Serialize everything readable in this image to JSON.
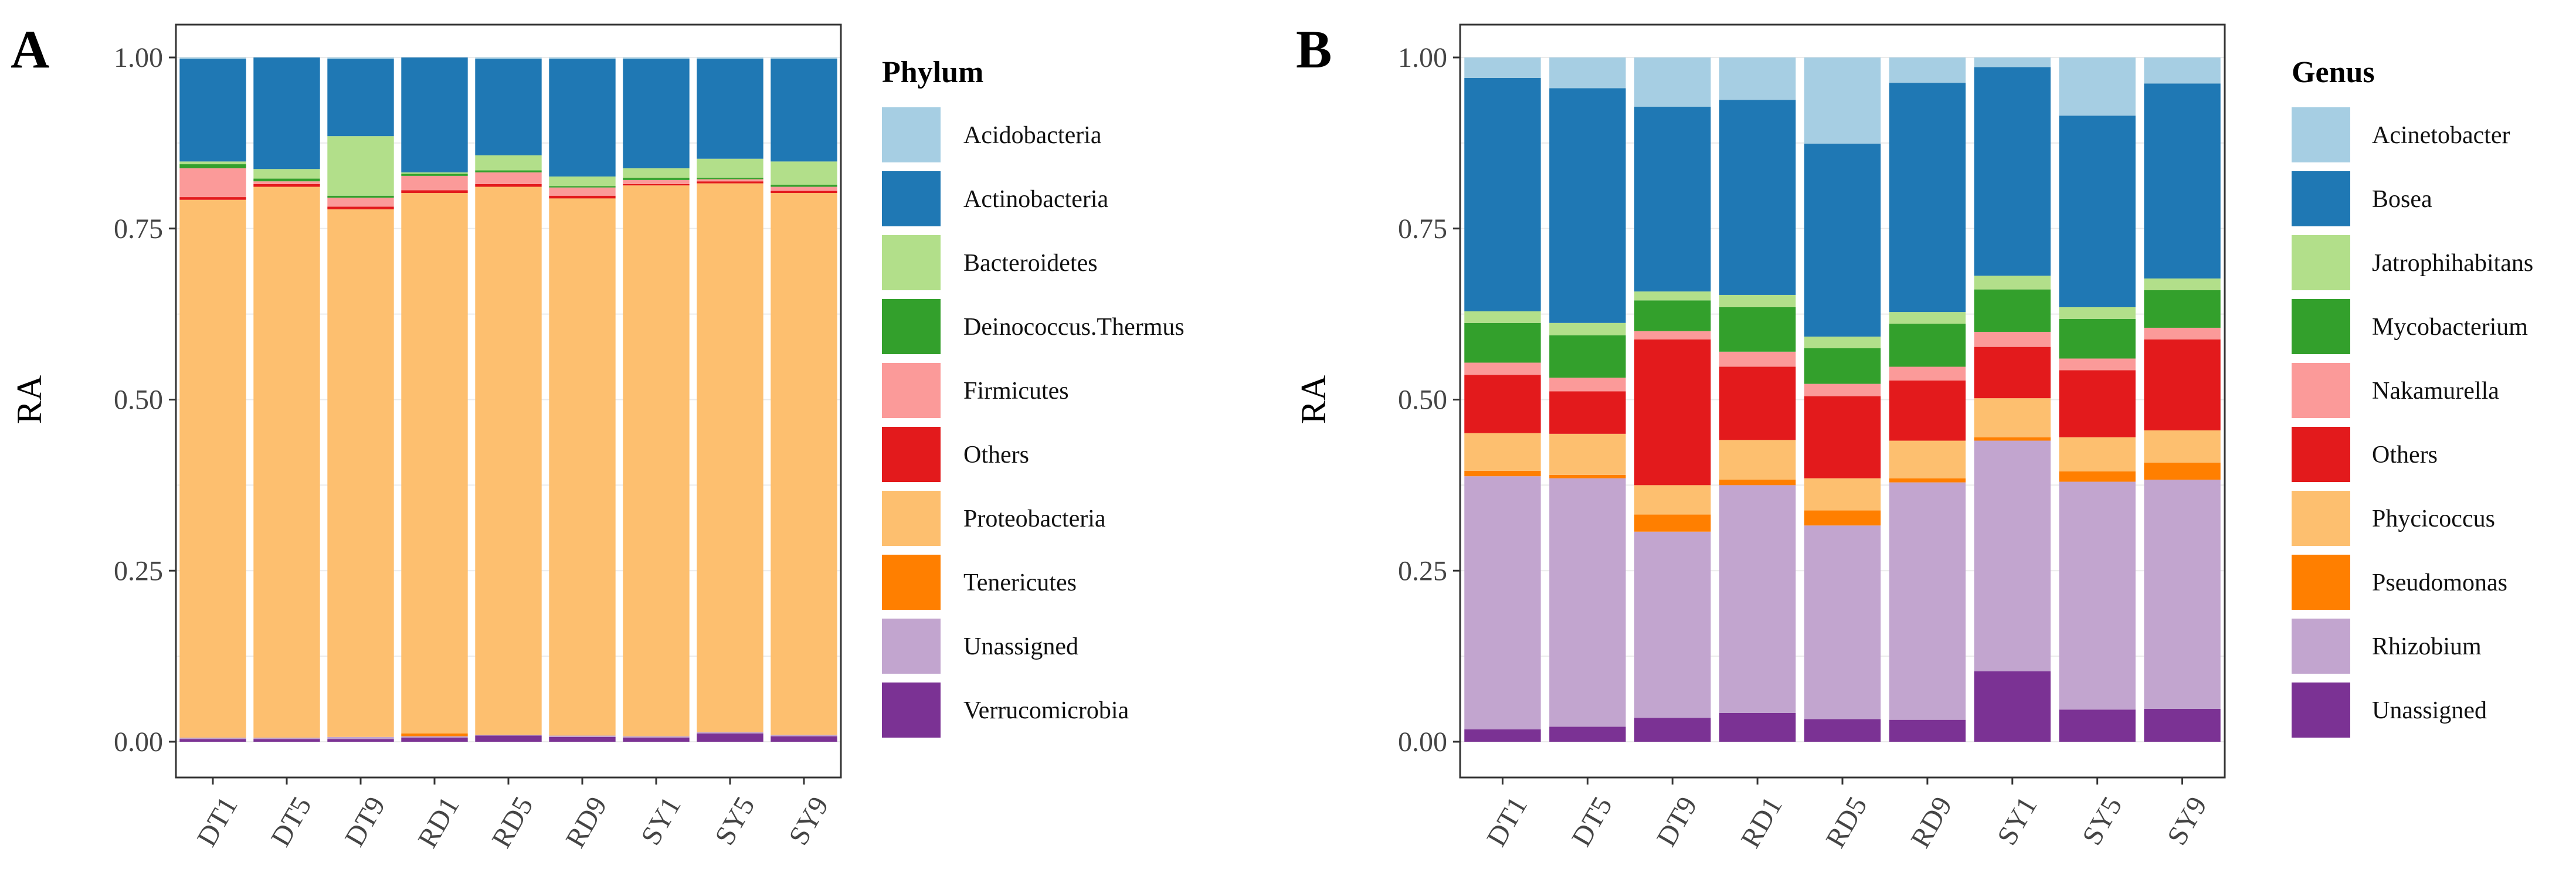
{
  "chart_data": [
    {
      "panel_label": "A",
      "type": "bar",
      "stacked": true,
      "ylabel": "RA",
      "xlabel": "",
      "ylim": [
        0,
        1
      ],
      "yticks": [
        "0.00",
        "0.25",
        "0.50",
        "0.75",
        "1.00"
      ],
      "grid": true,
      "legend_position": "right",
      "legend_title": "Phylum",
      "categories": [
        "DT1",
        "DT5",
        "DT9",
        "RD1",
        "RD5",
        "RD9",
        "SY1",
        "SY5",
        "SY9"
      ],
      "series": [
        {
          "name": "Verrucomicrobia",
          "color": "#7b3294",
          "values": [
            0.004,
            0.004,
            0.004,
            0.006,
            0.009,
            0.007,
            0.006,
            0.012,
            0.008
          ]
        },
        {
          "name": "Unassigned",
          "color": "#c2a5cf",
          "values": [
            0.002,
            0.002,
            0.003,
            0.002,
            0.001,
            0.002,
            0.002,
            0.002,
            0.002
          ]
        },
        {
          "name": "Tenericutes",
          "color": "#ff7f00",
          "values": [
            0.0,
            0.0,
            0.0,
            0.004,
            0.0,
            0.0,
            0.0,
            0.0,
            0.0
          ]
        },
        {
          "name": "Proteobacteria",
          "color": "#fdbf6f",
          "values": [
            0.786,
            0.805,
            0.771,
            0.79,
            0.801,
            0.785,
            0.805,
            0.802,
            0.792
          ]
        },
        {
          "name": "Others",
          "color": "#e31a1c",
          "values": [
            0.004,
            0.004,
            0.004,
            0.004,
            0.004,
            0.004,
            0.002,
            0.003,
            0.003
          ]
        },
        {
          "name": "Firmicutes",
          "color": "#fb9a99",
          "values": [
            0.042,
            0.004,
            0.013,
            0.021,
            0.017,
            0.012,
            0.006,
            0.003,
            0.006
          ]
        },
        {
          "name": "Deinococcus.Thermus",
          "color": "#33a02c",
          "values": [
            0.006,
            0.004,
            0.003,
            0.003,
            0.003,
            0.002,
            0.003,
            0.002,
            0.003
          ]
        },
        {
          "name": "Bacteroidetes",
          "color": "#b2df8a",
          "values": [
            0.004,
            0.014,
            0.087,
            0.002,
            0.022,
            0.014,
            0.014,
            0.028,
            0.034
          ]
        },
        {
          "name": "Actinobacteria",
          "color": "#1f78b4",
          "values": [
            0.15,
            0.163,
            0.113,
            0.168,
            0.141,
            0.172,
            0.16,
            0.146,
            0.15
          ]
        },
        {
          "name": "Acidobacteria",
          "color": "#a6cee3",
          "values": [
            0.002,
            0.0,
            0.002,
            0.0,
            0.002,
            0.002,
            0.002,
            0.002,
            0.002
          ]
        }
      ],
      "legend_order": [
        "Acidobacteria",
        "Actinobacteria",
        "Bacteroidetes",
        "Deinococcus.Thermus",
        "Firmicutes",
        "Others",
        "Proteobacteria",
        "Tenericutes",
        "Unassigned",
        "Verrucomicrobia"
      ]
    },
    {
      "panel_label": "B",
      "type": "bar",
      "stacked": true,
      "ylabel": "RA",
      "xlabel": "",
      "ylim": [
        0,
        1
      ],
      "yticks": [
        "0.00",
        "0.25",
        "0.50",
        "0.75",
        "1.00"
      ],
      "grid": true,
      "legend_position": "right",
      "legend_title": "Genus",
      "categories": [
        "DT1",
        "DT5",
        "DT9",
        "RD1",
        "RD5",
        "RD9",
        "SY1",
        "SY5",
        "SY9"
      ],
      "series": [
        {
          "name": "Unassigned",
          "color": "#7b3294",
          "values": [
            0.018,
            0.022,
            0.035,
            0.042,
            0.033,
            0.032,
            0.103,
            0.047,
            0.048
          ]
        },
        {
          "name": "Rhizobium",
          "color": "#c2a5cf",
          "values": [
            0.37,
            0.363,
            0.272,
            0.333,
            0.283,
            0.347,
            0.337,
            0.333,
            0.335
          ]
        },
        {
          "name": "Pseudomonas",
          "color": "#ff7f00",
          "values": [
            0.008,
            0.005,
            0.025,
            0.008,
            0.022,
            0.006,
            0.005,
            0.015,
            0.025
          ]
        },
        {
          "name": "Phycicoccus",
          "color": "#fdbf6f",
          "values": [
            0.055,
            0.06,
            0.043,
            0.058,
            0.047,
            0.055,
            0.057,
            0.05,
            0.047
          ]
        },
        {
          "name": "Others",
          "color": "#e31a1c",
          "values": [
            0.085,
            0.062,
            0.213,
            0.107,
            0.12,
            0.088,
            0.075,
            0.098,
            0.133
          ]
        },
        {
          "name": "Nakamurella",
          "color": "#fb9a99",
          "values": [
            0.018,
            0.02,
            0.012,
            0.022,
            0.018,
            0.02,
            0.022,
            0.017,
            0.017
          ]
        },
        {
          "name": "Mycobacterium",
          "color": "#33a02c",
          "values": [
            0.058,
            0.062,
            0.045,
            0.065,
            0.052,
            0.063,
            0.062,
            0.058,
            0.055
          ]
        },
        {
          "name": "Jatrophihabitans",
          "color": "#b2df8a",
          "values": [
            0.017,
            0.018,
            0.013,
            0.018,
            0.017,
            0.017,
            0.02,
            0.017,
            0.017
          ]
        },
        {
          "name": "Bosea",
          "color": "#1f78b4",
          "values": [
            0.341,
            0.343,
            0.27,
            0.285,
            0.282,
            0.335,
            0.305,
            0.28,
            0.285
          ]
        },
        {
          "name": "Acinetobacter",
          "color": "#a6cee3",
          "values": [
            0.03,
            0.045,
            0.072,
            0.062,
            0.126,
            0.037,
            0.014,
            0.085,
            0.038
          ]
        }
      ],
      "legend_order": [
        "Acinetobacter",
        "Bosea",
        "Jatrophihabitans",
        "Mycobacterium",
        "Nakamurella",
        "Others",
        "Phycicoccus",
        "Pseudomonas",
        "Rhizobium",
        "Unassigned"
      ]
    }
  ]
}
